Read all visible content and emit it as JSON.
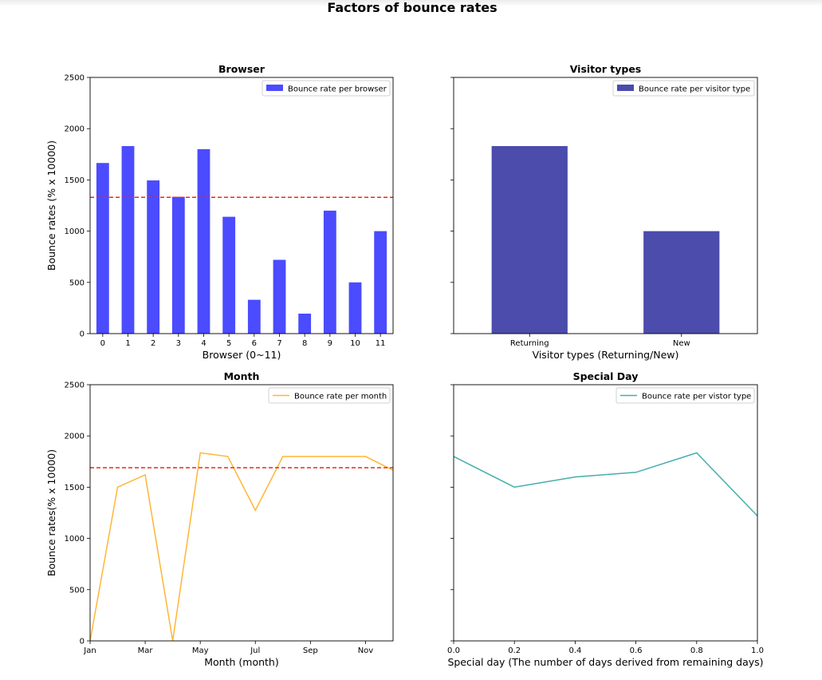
{
  "suptitle": "Factors of bounce rates",
  "colors": {
    "browser_bar": "#4b4bff",
    "visitor_bar": "#4b4cab",
    "month_line": "#ffb638",
    "special_line": "#45aeac",
    "mean_line": "#e8281e"
  },
  "chart_data": [
    {
      "type": "bar",
      "title": "Browser",
      "xlabel": "Browser (0~11)",
      "ylabel": "Bounce rates (% x 10000)",
      "categories": [
        "0",
        "1",
        "2",
        "3",
        "4",
        "5",
        "6",
        "7",
        "8",
        "9",
        "10",
        "11"
      ],
      "series": [
        {
          "name": "Bounce rate per browser",
          "values": [
            1665,
            1830,
            1495,
            1335,
            1800,
            1140,
            330,
            720,
            195,
            1200,
            500,
            1000
          ]
        }
      ],
      "reference_line": {
        "y": 1330,
        "style": "dashed",
        "color": "red"
      },
      "ylim": [
        0,
        2500
      ],
      "yticks": [
        "0",
        "500",
        "1000",
        "1500",
        "2000",
        "2500"
      ],
      "grid": false,
      "legend_position": "top-right"
    },
    {
      "type": "bar",
      "title": "Visitor types",
      "xlabel": "Visitor types (Returning/New)",
      "ylabel": "",
      "categories": [
        "Returning",
        "New"
      ],
      "series": [
        {
          "name": "Bounce rate per visitor type",
          "values": [
            1830,
            1000
          ]
        }
      ],
      "ylim": [
        0,
        2500
      ],
      "shared_y_with": "Browser",
      "grid": false,
      "legend_position": "top-right"
    },
    {
      "type": "line",
      "title": "Month",
      "xlabel": "Month (month)",
      "ylabel": "Bounce rates(% x 10000)",
      "x": [
        0,
        1,
        2,
        3,
        4,
        5,
        6,
        7,
        8,
        9,
        10,
        11
      ],
      "xtick_positions": [
        0,
        2,
        4,
        6,
        8,
        10
      ],
      "xticks": [
        "Jan",
        "Mar",
        "May",
        "Jul",
        "Sep",
        "Nov"
      ],
      "series": [
        {
          "name": "Bounce rate per month",
          "values": [
            0,
            1500,
            1620,
            0,
            1835,
            1800,
            1275,
            1800,
            1800,
            1800,
            1800,
            1665
          ]
        }
      ],
      "reference_line": {
        "y": 1690,
        "style": "dashed",
        "color": "red"
      },
      "xlim": [
        0,
        11
      ],
      "ylim": [
        0,
        2500
      ],
      "yticks": [
        "0",
        "500",
        "1000",
        "1500",
        "2000",
        "2500"
      ],
      "grid": false,
      "legend_position": "top-right"
    },
    {
      "type": "line",
      "title": "Special Day",
      "xlabel": "Special day (The number of days derived from remaining days)",
      "ylabel": "",
      "x": [
        0.0,
        0.2,
        0.4,
        0.6,
        0.8,
        1.0
      ],
      "xticks": [
        "0.0",
        "0.2",
        "0.4",
        "0.6",
        "0.8",
        "1.0"
      ],
      "series": [
        {
          "name": "Bounce rate per vistor type",
          "values": [
            1800,
            1500,
            1600,
            1645,
            1835,
            1220
          ]
        }
      ],
      "xlim": [
        0,
        1
      ],
      "ylim": [
        0,
        2500
      ],
      "shared_y_with": "Month",
      "grid": false,
      "legend_position": "top-right"
    }
  ]
}
